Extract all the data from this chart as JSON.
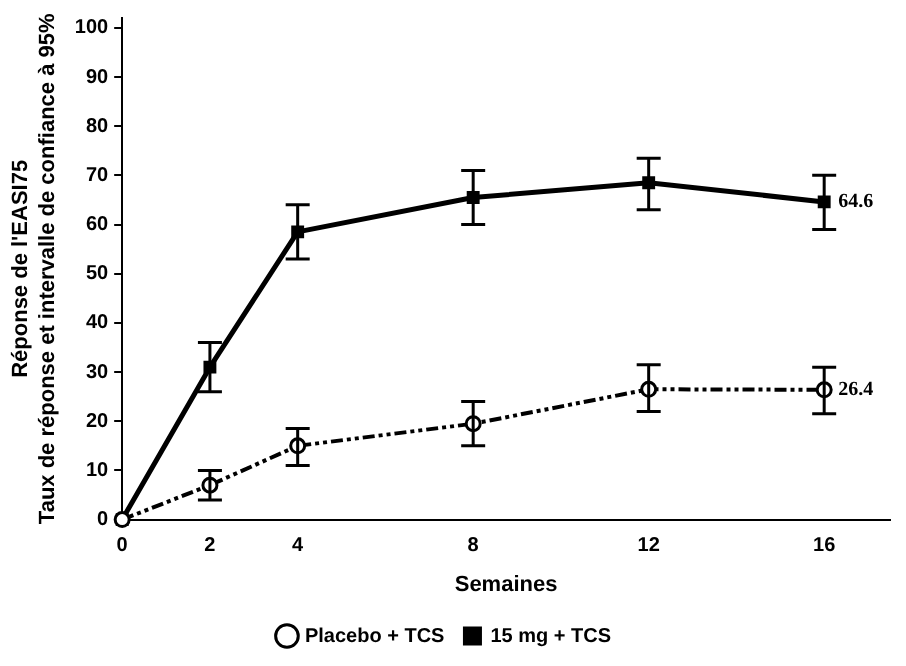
{
  "chart_data": {
    "type": "line",
    "xlabel": "Semaines",
    "ylabel": "Réponse de l'EASI75\nTaux de réponse et intervalle de confiance à 95%",
    "x": [
      0,
      2,
      4,
      8,
      12,
      16
    ],
    "xlim": [
      0,
      17.5
    ],
    "xticks": [
      0,
      2,
      4,
      8,
      12,
      16
    ],
    "ylim": [
      0,
      102
    ],
    "yticks": [
      0,
      10,
      20,
      30,
      40,
      50,
      60,
      70,
      80,
      90,
      100
    ],
    "grid": false,
    "legend": "bottom",
    "series": [
      {
        "name": "Placebo + TCS",
        "color": "#000000",
        "line_style": "dashed",
        "marker": "circle",
        "values": [
          0,
          7,
          15,
          19.5,
          26.5,
          26.4
        ],
        "errors": [
          null,
          [
            4,
            10
          ],
          [
            11,
            18.5
          ],
          [
            15,
            24
          ],
          [
            22,
            31.5
          ],
          [
            21.5,
            31
          ]
        ],
        "value_labels": [
          null,
          null,
          null,
          null,
          null,
          "26.4"
        ]
      },
      {
        "name": "15 mg + TCS",
        "color": "#000000",
        "line_style": "solid",
        "marker": "square",
        "values": [
          0,
          31,
          58.5,
          65.5,
          68.5,
          64.6
        ],
        "errors": [
          null,
          [
            26,
            36
          ],
          [
            53,
            64
          ],
          [
            60,
            71
          ],
          [
            63,
            73.5
          ],
          [
            59,
            70
          ]
        ],
        "value_labels": [
          null,
          null,
          null,
          null,
          null,
          "64.6"
        ]
      }
    ]
  }
}
